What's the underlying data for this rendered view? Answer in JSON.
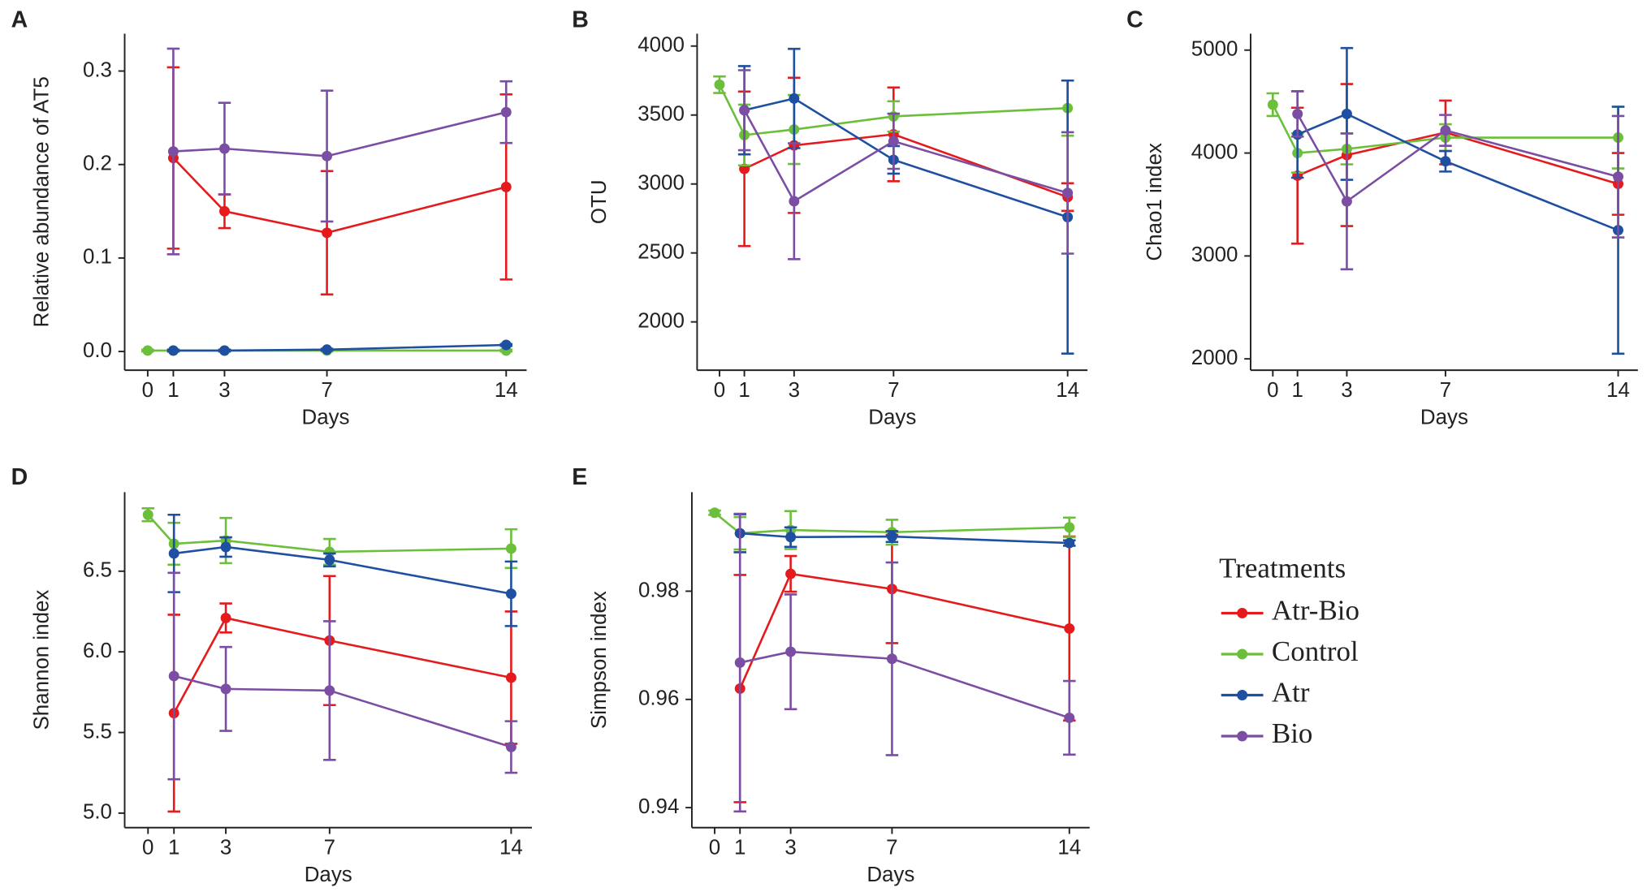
{
  "legend_title": "Treatments",
  "chart_data": [
    {
      "type": "line",
      "label": "A",
      "xlabel": "Days",
      "ylabel": "Relative abundance of AT5",
      "x": [
        0,
        1,
        3,
        7,
        14
      ],
      "xlim": [
        -0.9,
        14.8
      ],
      "xticks": [
        0,
        1,
        3,
        7,
        14
      ],
      "ylim": [
        -0.02,
        0.34
      ],
      "yticks": [
        {
          "value": 0,
          "label": "0.0"
        },
        0.1,
        0.2,
        0.3
      ],
      "series": [
        {
          "name": "Atr-Bio",
          "color": "#e41a1c",
          "values": [
            null,
            0.207,
            0.15,
            0.127,
            0.176
          ],
          "errors": [
            null,
            0.097,
            0.018,
            0.066,
            0.099
          ]
        },
        {
          "name": "Control",
          "color": "#6cbf3a",
          "values": [
            0.001,
            0.001,
            0.001,
            0.001,
            0.001
          ],
          "errors": [
            0.001,
            0.001,
            0.001,
            0.001,
            0.001
          ]
        },
        {
          "name": "Atr",
          "color": "#1f4fa0",
          "values": [
            null,
            0.001,
            0.001,
            0.002,
            0.007
          ],
          "errors": [
            null,
            0.001,
            0.001,
            0.001,
            0.001
          ]
        },
        {
          "name": "Bio",
          "color": "#7b4ea3",
          "values": [
            null,
            0.214,
            0.217,
            0.209,
            0.256
          ],
          "errors": [
            null,
            0.11,
            0.049,
            0.07,
            0.033
          ]
        }
      ]
    },
    {
      "type": "line",
      "label": "B",
      "xlabel": "Days",
      "ylabel": "OTU",
      "x": [
        0,
        1,
        3,
        7,
        14
      ],
      "xlim": [
        -0.9,
        14.8
      ],
      "xticks": [
        0,
        1,
        3,
        7,
        14
      ],
      "ylim": [
        1650,
        4090
      ],
      "yticks": [
        2000,
        2500,
        3000,
        3500,
        4000
      ],
      "series": [
        {
          "name": "Atr-Bio",
          "color": "#e41a1c",
          "values": [
            null,
            3110,
            3280,
            3360,
            2905
          ],
          "errors": [
            null,
            560,
            490,
            340,
            100
          ]
        },
        {
          "name": "Control",
          "color": "#6cbf3a",
          "values": [
            3720,
            3355,
            3395,
            3490,
            3550
          ],
          "errors": [
            60,
            220,
            250,
            110,
            200
          ]
        },
        {
          "name": "Atr",
          "color": "#1f4fa0",
          "values": [
            null,
            3535,
            3620,
            3175,
            2760
          ],
          "errors": [
            null,
            320,
            360,
            100,
            990
          ]
        },
        {
          "name": "Bio",
          "color": "#7b4ea3",
          "values": [
            null,
            3535,
            2875,
            3310,
            2935
          ],
          "errors": [
            null,
            290,
            420,
            200,
            440
          ]
        }
      ]
    },
    {
      "type": "line",
      "label": "C",
      "xlabel": "Days",
      "ylabel": "Chao1 index",
      "x": [
        0,
        1,
        3,
        7,
        14
      ],
      "xlim": [
        -0.9,
        14.8
      ],
      "xticks": [
        0,
        1,
        3,
        7,
        14
      ],
      "ylim": [
        1890,
        5160
      ],
      "yticks": [
        2000,
        3000,
        4000,
        5000
      ],
      "series": [
        {
          "name": "Atr-Bio",
          "color": "#e41a1c",
          "values": [
            null,
            3780,
            3980,
            4200,
            3700
          ],
          "errors": [
            null,
            660,
            690,
            310,
            300
          ]
        },
        {
          "name": "Control",
          "color": "#6cbf3a",
          "values": [
            4470,
            4000,
            4040,
            4150,
            4150
          ],
          "errors": [
            110,
            190,
            150,
            130,
            300
          ]
        },
        {
          "name": "Atr",
          "color": "#1f4fa0",
          "values": [
            null,
            4180,
            4380,
            3920,
            3250
          ],
          "errors": [
            null,
            420,
            640,
            100,
            1200
          ]
        },
        {
          "name": "Bio",
          "color": "#7b4ea3",
          "values": [
            null,
            4380,
            3530,
            4220,
            3770
          ],
          "errors": [
            null,
            220,
            660,
            150,
            590
          ]
        }
      ]
    },
    {
      "type": "line",
      "label": "D",
      "xlabel": "Days",
      "ylabel": "Shannon index",
      "x": [
        0,
        1,
        3,
        7,
        14
      ],
      "xlim": [
        -0.9,
        14.8
      ],
      "xticks": [
        0,
        1,
        3,
        7,
        14
      ],
      "ylim": [
        4.91,
        6.99
      ],
      "yticks": [
        {
          "value": 5,
          "label": "5.0"
        },
        5.5,
        {
          "value": 6,
          "label": "6.0"
        },
        6.5
      ],
      "series": [
        {
          "name": "Atr-Bio",
          "color": "#e41a1c",
          "values": [
            null,
            5.62,
            6.21,
            6.07,
            5.84
          ],
          "errors": [
            null,
            0.61,
            0.09,
            0.4,
            0.41
          ]
        },
        {
          "name": "Control",
          "color": "#6cbf3a",
          "values": [
            6.85,
            6.67,
            6.69,
            6.62,
            6.64
          ],
          "errors": [
            0.04,
            0.13,
            0.14,
            0.08,
            0.12
          ]
        },
        {
          "name": "Atr",
          "color": "#1f4fa0",
          "values": [
            null,
            6.61,
            6.65,
            6.57,
            6.36
          ],
          "errors": [
            null,
            0.24,
            0.06,
            0.04,
            0.2
          ]
        },
        {
          "name": "Bio",
          "color": "#7b4ea3",
          "values": [
            null,
            5.85,
            5.77,
            5.76,
            5.41
          ],
          "errors": [
            null,
            0.64,
            0.26,
            0.43,
            0.16
          ]
        }
      ]
    },
    {
      "type": "line",
      "label": "E",
      "xlabel": "Days",
      "ylabel": "Simpson index",
      "x": [
        0,
        1,
        3,
        7,
        14
      ],
      "xlim": [
        -0.9,
        14.8
      ],
      "xticks": [
        0,
        1,
        3,
        7,
        14
      ],
      "ylim": [
        0.9363,
        0.9983
      ],
      "yticks": [
        0.94,
        0.96,
        0.98
      ],
      "series": [
        {
          "name": "Atr-Bio",
          "color": "#e41a1c",
          "values": [
            null,
            0.962,
            0.9832,
            0.9804,
            0.9731
          ],
          "errors": [
            null,
            0.021,
            0.0033,
            0.01,
            0.017
          ]
        },
        {
          "name": "Control",
          "color": "#6cbf3a",
          "values": [
            0.9945,
            0.9907,
            0.9913,
            0.9909,
            0.9918
          ],
          "errors": [
            0.0004,
            0.003,
            0.0035,
            0.0023,
            0.0018
          ]
        },
        {
          "name": "Atr",
          "color": "#1f4fa0",
          "values": [
            null,
            0.9907,
            0.99,
            0.9901,
            0.9889
          ],
          "errors": [
            null,
            0.0035,
            0.0018,
            0.001,
            0.0005
          ]
        },
        {
          "name": "Bio",
          "color": "#7b4ea3",
          "values": [
            null,
            0.9668,
            0.9688,
            0.9675,
            0.9566
          ],
          "errors": [
            null,
            0.0275,
            0.0106,
            0.0178,
            0.0068
          ]
        }
      ]
    }
  ]
}
